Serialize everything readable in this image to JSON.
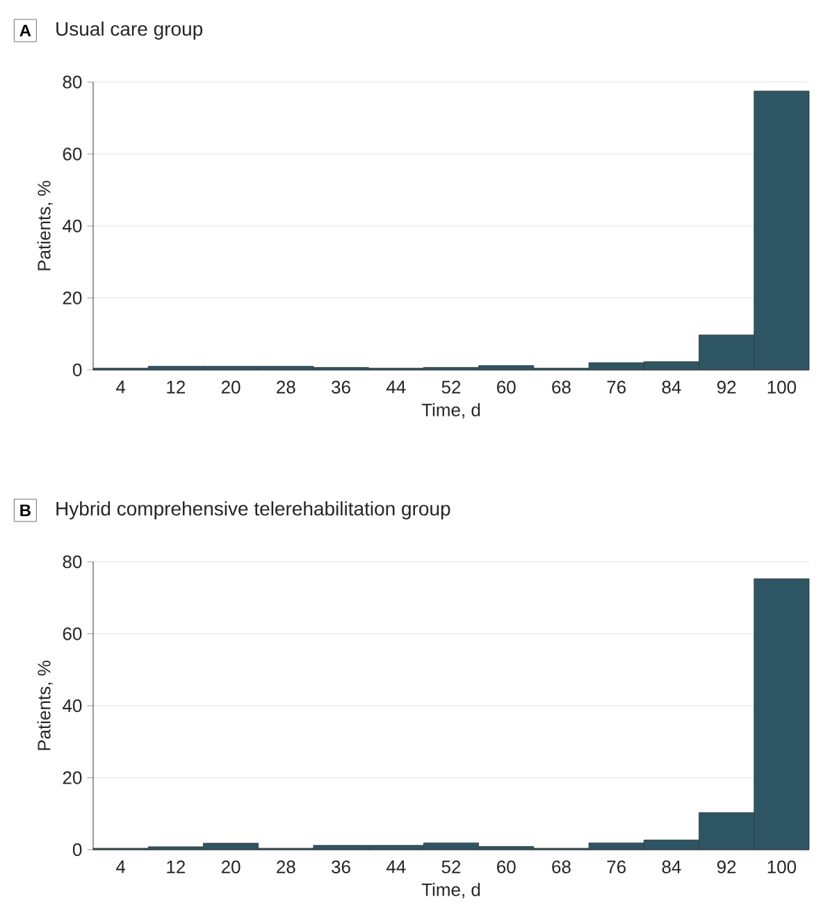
{
  "chart_data": [
    {
      "type": "bar",
      "title": "Usual care group",
      "annotations": [
        "A"
      ],
      "xlabel": "Time, d",
      "ylabel": "Patients, %",
      "categories": [
        "4",
        "12",
        "20",
        "28",
        "36",
        "44",
        "52",
        "60",
        "68",
        "76",
        "84",
        "92",
        "100"
      ],
      "values": [
        0.5,
        1.0,
        1.0,
        1.0,
        0.7,
        0.5,
        0.7,
        1.2,
        0.5,
        2.0,
        2.3,
        9.7,
        77.5
      ],
      "color": "#2e5563",
      "ylim": [
        0,
        80
      ],
      "yticks": [
        0,
        20,
        40,
        60,
        80
      ],
      "grid": "y"
    },
    {
      "type": "bar",
      "title": "Hybrid comprehensive telerehabilitation group",
      "annotations": [
        "B"
      ],
      "xlabel": "Time, d",
      "ylabel": "Patients, %",
      "categories": [
        "4",
        "12",
        "20",
        "28",
        "36",
        "44",
        "52",
        "60",
        "68",
        "76",
        "84",
        "92",
        "100"
      ],
      "values": [
        0.4,
        0.8,
        1.8,
        0.4,
        1.2,
        1.2,
        1.9,
        0.9,
        0.4,
        1.9,
        2.7,
        10.3,
        75.3
      ],
      "color": "#2e5563",
      "ylim": [
        0,
        80
      ],
      "yticks": [
        0,
        20,
        40,
        60,
        80
      ],
      "grid": "y"
    }
  ]
}
